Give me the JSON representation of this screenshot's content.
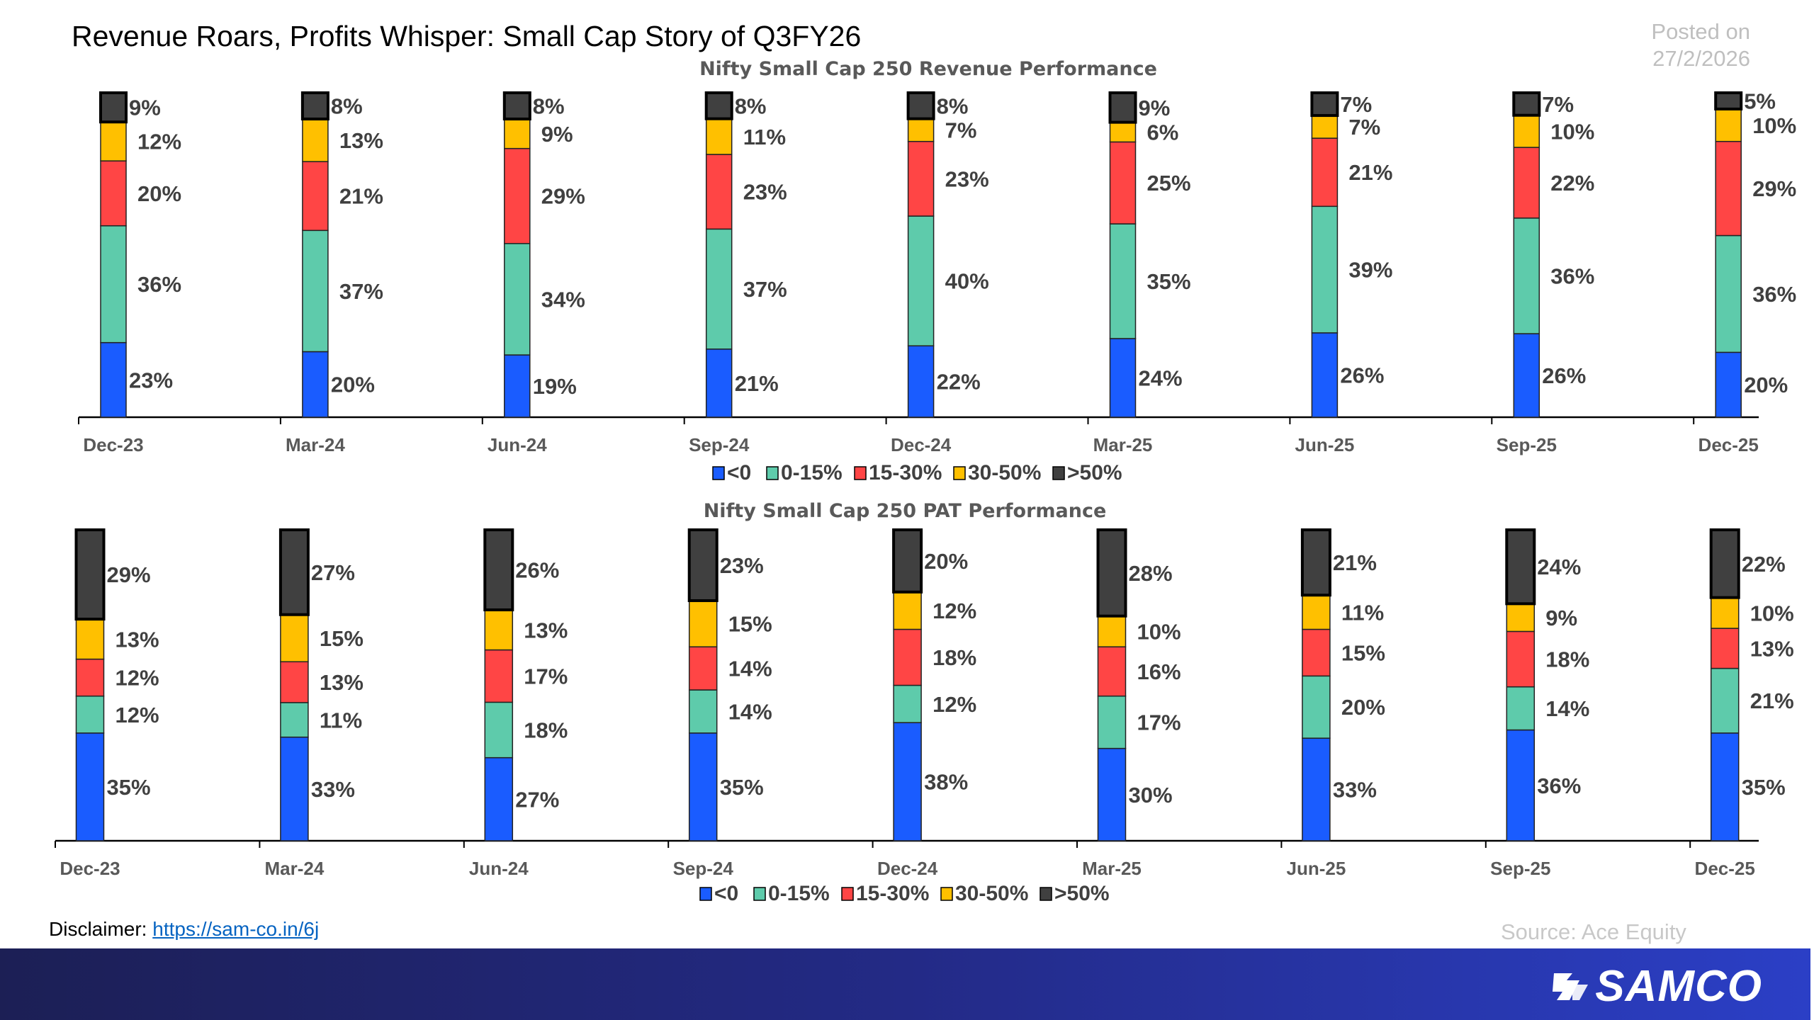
{
  "header": {
    "title": "Revenue Roars, Profits Whisper: Small Cap Story of Q3FY26",
    "posted_label": "Posted on",
    "posted_date": "27/2/2026"
  },
  "colors": {
    "lt0": "#1a5cff",
    "0-15": "#5ecbab",
    "15-30": "#ff4545",
    "30-50": "#ffc000",
    "gt50": "#404040"
  },
  "chart_data": [
    {
      "type": "bar",
      "stacked": true,
      "title": "Nifty Small Cap 250 Revenue Performance",
      "categories": [
        "Dec-23",
        "Mar-24",
        "Jun-24",
        "Sep-24",
        "Dec-24",
        "Mar-25",
        "Jun-25",
        "Sep-25",
        "Dec-25"
      ],
      "series": [
        {
          "name": "<0",
          "values": [
            23,
            20,
            19,
            21,
            22,
            24,
            26,
            26,
            20
          ]
        },
        {
          "name": "0-15%",
          "values": [
            36,
            37,
            34,
            37,
            40,
            35,
            39,
            36,
            36
          ]
        },
        {
          "name": "15-30%",
          "values": [
            20,
            21,
            29,
            23,
            23,
            25,
            21,
            22,
            29
          ]
        },
        {
          "name": "30-50%",
          "values": [
            12,
            13,
            9,
            11,
            7,
            6,
            7,
            10,
            10
          ]
        },
        {
          "name": ">50%",
          "values": [
            9,
            8,
            8,
            8,
            8,
            9,
            7,
            7,
            5
          ]
        }
      ],
      "ylim": [
        0,
        100
      ],
      "grid": false,
      "legend": "bottom"
    },
    {
      "type": "bar",
      "stacked": true,
      "title": "Nifty Small Cap 250 PAT Performance",
      "categories": [
        "Dec-23",
        "Mar-24",
        "Jun-24",
        "Sep-24",
        "Dec-24",
        "Mar-25",
        "Jun-25",
        "Sep-25",
        "Dec-25"
      ],
      "series": [
        {
          "name": "<0",
          "values": [
            35,
            33,
            27,
            35,
            38,
            30,
            33,
            36,
            35
          ]
        },
        {
          "name": "0-15%",
          "values": [
            12,
            11,
            18,
            14,
            12,
            17,
            20,
            14,
            21
          ]
        },
        {
          "name": "15-30%",
          "values": [
            12,
            13,
            17,
            14,
            18,
            16,
            15,
            18,
            13
          ]
        },
        {
          "name": "30-50%",
          "values": [
            13,
            15,
            13,
            15,
            12,
            10,
            11,
            9,
            10
          ]
        },
        {
          "name": ">50%",
          "values": [
            29,
            27,
            26,
            23,
            20,
            28,
            21,
            24,
            22
          ]
        }
      ],
      "ylim": [
        0,
        100
      ],
      "grid": false,
      "legend": "bottom"
    }
  ],
  "footer": {
    "disclaimer_label": "Disclaimer:",
    "disclaimer_link": "https://sam-co.in/6j",
    "source": "Source: Ace Equity",
    "logo_text": "SAMCO"
  }
}
